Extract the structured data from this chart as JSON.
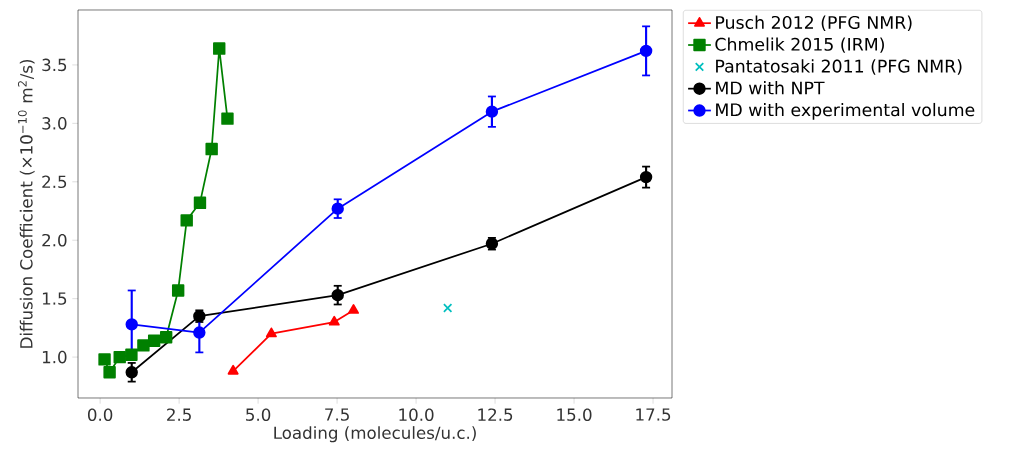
{
  "chart_data": {
    "type": "line",
    "xlabel": "Loading (molecules/u.c.)",
    "ylabel": "Diffusion Coefficient (×10$^{−10}$ m$^{2}$/s)",
    "xlim": [
      -0.7,
      18.1
    ],
    "ylim": [
      0.65,
      3.97
    ],
    "xticks": [
      {
        "value": 0,
        "label": "0.0"
      },
      2.5,
      {
        "value": 5,
        "label": "5.0"
      },
      7.5,
      {
        "value": 10,
        "label": "10.0"
      },
      12.5,
      {
        "value": 15,
        "label": "15.0"
      },
      17.5
    ],
    "yticks": [
      {
        "value": 1,
        "label": "1.0"
      },
      1.5,
      {
        "value": 2,
        "label": "2.0"
      },
      2.5,
      {
        "value": 3,
        "label": "3.0"
      },
      3.5
    ],
    "legend": "right",
    "grid": false,
    "series": [
      {
        "name": "Pusch 2012 (PFG NMR)",
        "color": "#ff0000",
        "marker": "triangle",
        "x": [
          4.21,
          5.42,
          7.41,
          8.02
        ],
        "values": [
          0.88,
          1.2,
          1.3,
          1.4
        ]
      },
      {
        "name": "Chmelik 2015 (IRM)",
        "color": "#008000",
        "marker": "square",
        "x": [
          0.14,
          0.3,
          0.62,
          0.99,
          1.37,
          1.71,
          2.09,
          2.47,
          2.74,
          3.16,
          3.53,
          3.77,
          4.03
        ],
        "values": [
          0.98,
          0.87,
          1.0,
          1.02,
          1.1,
          1.14,
          1.17,
          1.57,
          2.17,
          2.32,
          2.78,
          3.64,
          3.04
        ]
      },
      {
        "name": "Pantatosaki 2011 (PFG NMR)",
        "color": "#00bfbf",
        "type": "scatter",
        "marker": "cross",
        "x": [
          11.0
        ],
        "values": [
          1.42
        ]
      },
      {
        "name": "MD with NPT",
        "color": "#000000",
        "marker": "circle",
        "x": [
          1.0,
          3.14,
          7.52,
          12.4,
          17.28
        ],
        "values": [
          0.87,
          1.35,
          1.53,
          1.97,
          2.54
        ],
        "errors": [
          0.08,
          0.05,
          0.08,
          0.05,
          0.09
        ]
      },
      {
        "name": "MD with experimental volume",
        "color": "#0000ff",
        "marker": "circle",
        "x": [
          1.0,
          3.14,
          7.52,
          12.4,
          17.28
        ],
        "values": [
          1.28,
          1.21,
          2.27,
          3.1,
          3.62
        ],
        "errors": [
          0.29,
          0.17,
          0.08,
          0.13,
          0.21
        ]
      }
    ]
  }
}
